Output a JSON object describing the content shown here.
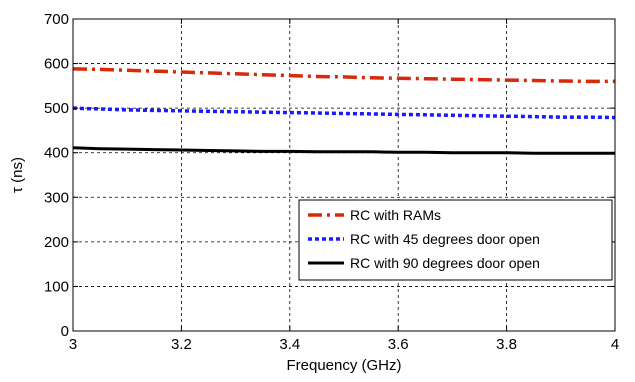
{
  "chart_data": {
    "type": "line",
    "title": "",
    "xlabel": "Frequency (GHz)",
    "ylabel": "τ (ns)",
    "xlim": [
      3,
      4
    ],
    "ylim": [
      0,
      700
    ],
    "xticks": [
      3,
      3.2,
      3.4,
      3.6,
      3.8,
      4
    ],
    "yticks": [
      0,
      100,
      200,
      300,
      400,
      500,
      600,
      700
    ],
    "xtick_labels": [
      "3",
      "3.2",
      "3.4",
      "3.6",
      "3.8",
      "4"
    ],
    "ytick_labels": [
      "0",
      "100",
      "200",
      "300",
      "400",
      "500",
      "600",
      "700"
    ],
    "grid": true,
    "legend_position": "lower-right",
    "series": [
      {
        "name": "RC with RAMs",
        "color": "#d62a0a",
        "line_style": "dash-dot",
        "x": [
          3.0,
          3.05,
          3.1,
          3.15,
          3.2,
          3.25,
          3.3,
          3.35,
          3.4,
          3.45,
          3.5,
          3.55,
          3.6,
          3.65,
          3.7,
          3.75,
          3.8,
          3.85,
          3.9,
          3.95,
          4.0
        ],
        "y": [
          588,
          587,
          585,
          583,
          581,
          579,
          577,
          575,
          573,
          571,
          570,
          568,
          567,
          566,
          565,
          564,
          563,
          562,
          561,
          560,
          560
        ]
      },
      {
        "name": "RC with 45 degrees door open",
        "color": "#1a1aff",
        "line_style": "dotted",
        "x": [
          3.0,
          3.05,
          3.1,
          3.15,
          3.2,
          3.25,
          3.3,
          3.35,
          3.4,
          3.45,
          3.5,
          3.55,
          3.6,
          3.65,
          3.7,
          3.75,
          3.8,
          3.85,
          3.9,
          3.95,
          4.0
        ],
        "y": [
          500,
          498,
          496,
          495,
          494,
          493,
          492,
          491,
          490,
          489,
          488,
          487,
          486,
          485,
          484,
          483,
          482,
          481,
          480,
          480,
          479
        ]
      },
      {
        "name": "RC with 90 degrees door open",
        "color": "#000000",
        "line_style": "solid",
        "x": [
          3.0,
          3.05,
          3.1,
          3.15,
          3.2,
          3.25,
          3.3,
          3.35,
          3.4,
          3.45,
          3.5,
          3.55,
          3.6,
          3.65,
          3.7,
          3.75,
          3.8,
          3.85,
          3.9,
          3.95,
          4.0
        ],
        "y": [
          411,
          409,
          408,
          407,
          406,
          405,
          404,
          403,
          403,
          402,
          402,
          402,
          401,
          401,
          400,
          400,
          400,
          399,
          399,
          399,
          399
        ]
      }
    ]
  }
}
